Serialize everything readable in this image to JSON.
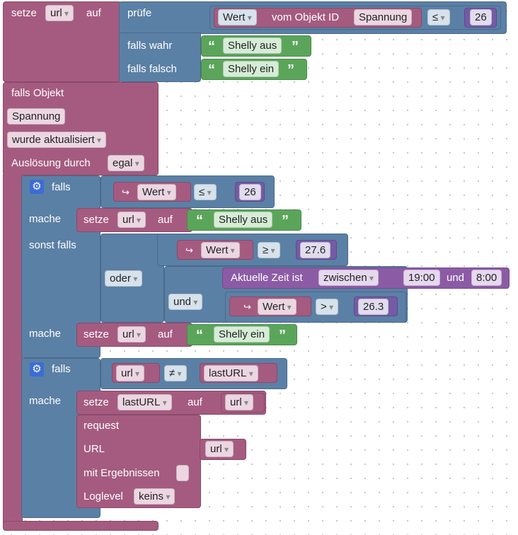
{
  "set_block": {
    "setze": "setze",
    "var": "url",
    "auf": "auf",
    "pruefe": "prüfe",
    "falls_wahr": "falls wahr",
    "falls_falsch": "falls falsch",
    "wert": "Wert",
    "vom_objekt": "vom Objekt ID",
    "objekt": "Spannung",
    "op": "≤",
    "num": "26",
    "text_wahr": "Shelly aus",
    "text_falsch": "Shelly ein"
  },
  "trigger": {
    "falls_objekt": "falls Objekt",
    "objekt": "Spannung",
    "event": "wurde aktualisiert",
    "ausloesung": "Auslösung durch",
    "egal": "egal"
  },
  "if1": {
    "falls": "falls",
    "wert": "Wert",
    "op": "≤",
    "num": "26",
    "mache": "mache",
    "setze": "setze",
    "var": "url",
    "auf": "auf",
    "text": "Shelly aus",
    "sonst_falls": "sonst falls",
    "oder": "oder",
    "und": "und",
    "wert2": "Wert",
    "op2": "≥",
    "num2": "27.6",
    "zeit": "Aktuelle Zeit ist",
    "zwischen": "zwischen",
    "t1": "19:00",
    "und_t": "und",
    "t2": "8:00",
    "wert3": "Wert",
    "op3": ">",
    "num3": "26.3",
    "mache2": "mache",
    "setze2": "setze",
    "var2": "url",
    "auf2": "auf",
    "text2": "Shelly ein"
  },
  "if2": {
    "falls": "falls",
    "var": "url",
    "op": "≠",
    "var2": "lastURL",
    "mache": "mache",
    "setze": "setze",
    "var3": "lastURL",
    "auf": "auf",
    "var4": "url",
    "request": "request",
    "url_label": "URL",
    "url_var": "url",
    "ergebnis": "mit Ergebnissen",
    "loglevel": "Loglevel",
    "keins": "keins"
  }
}
